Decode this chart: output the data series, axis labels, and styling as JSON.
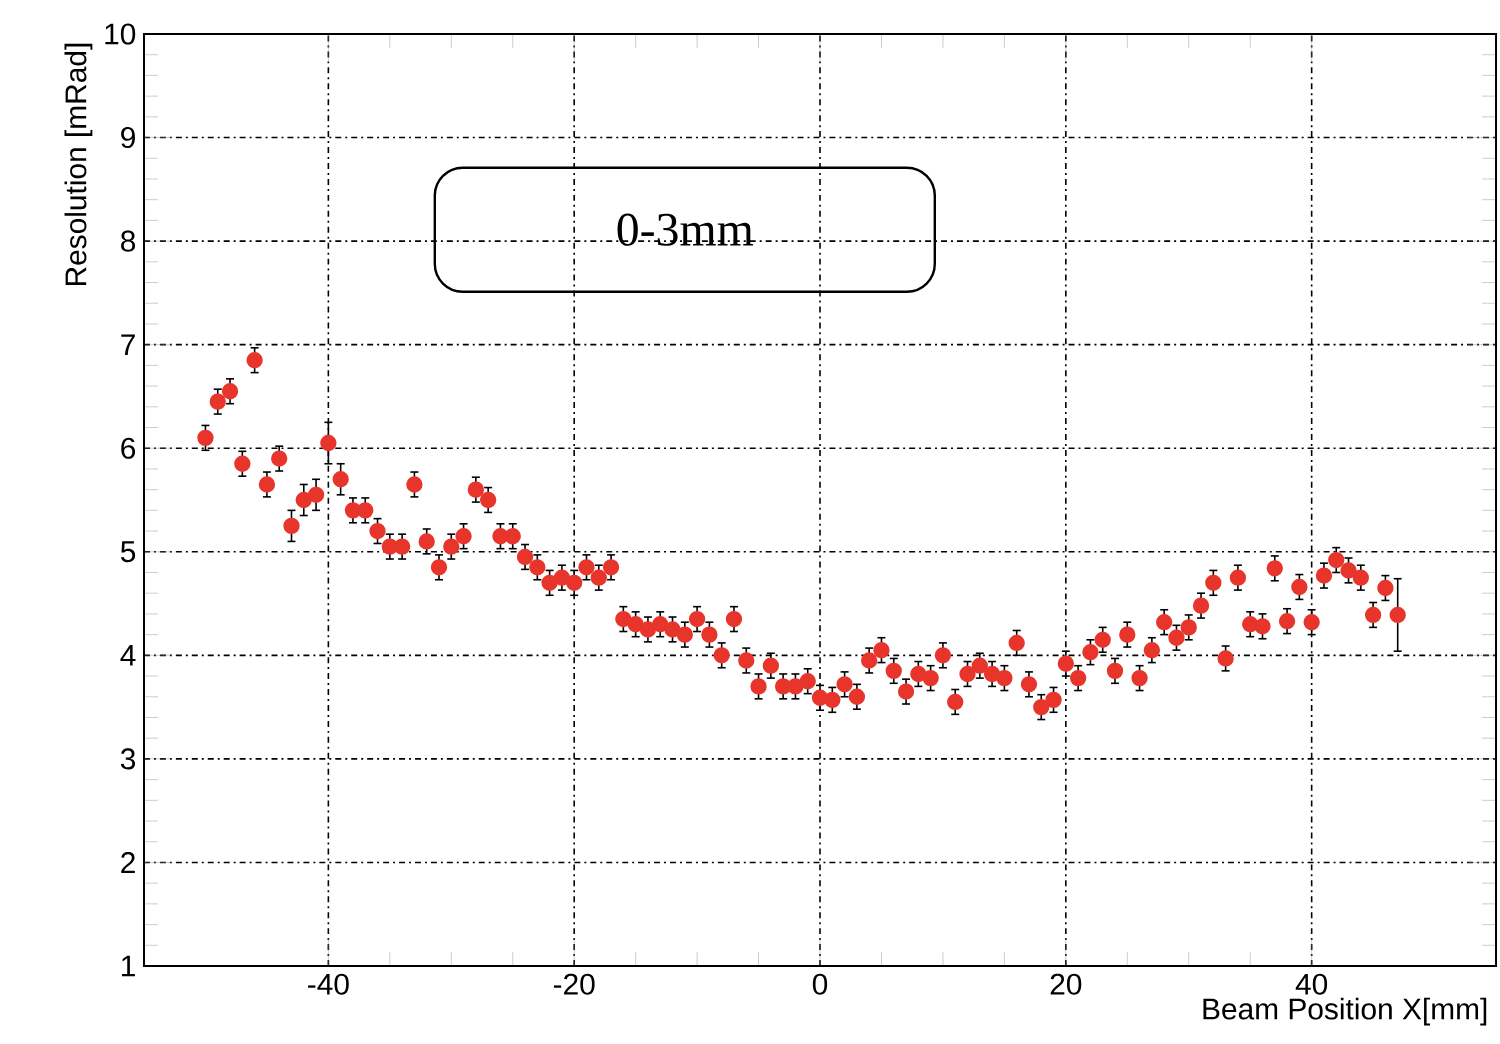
{
  "chart_data": {
    "type": "scatter",
    "xlabel": "Beam Position X[mm]",
    "ylabel": "Resolution [mRad]",
    "annotations": [
      "0-3mm"
    ],
    "xlim": [
      -55,
      55
    ],
    "xticks": [
      -40,
      -20,
      0,
      20,
      40
    ],
    "ylim": [
      1,
      10
    ],
    "yticks": [
      1,
      2,
      3,
      4,
      5,
      6,
      7,
      8,
      9,
      10
    ],
    "grid": true,
    "marker": "circle",
    "series": [
      {
        "color": "#e8352c",
        "x": [
          -50,
          -49,
          -48,
          -47,
          -46,
          -45,
          -44,
          -43,
          -42,
          -41,
          -40,
          -39,
          -38,
          -37,
          -36,
          -35,
          -34,
          -33,
          -32,
          -31,
          -30,
          -29,
          -28,
          -27,
          -26,
          -25,
          -24,
          -23,
          -22,
          -21,
          -20,
          -19,
          -18,
          -17,
          -16,
          -15,
          -14,
          -13,
          -12,
          -11,
          -10,
          -9,
          -8,
          -7,
          -6,
          -5,
          -4,
          -3,
          -2,
          -1,
          0,
          1,
          2,
          3,
          4,
          5,
          6,
          7,
          8,
          9,
          10,
          11,
          12,
          13,
          14,
          15,
          16,
          17,
          18,
          19,
          20,
          21,
          22,
          23,
          24,
          25,
          26,
          27,
          28,
          29,
          30,
          31,
          32,
          33,
          34,
          35,
          36,
          37,
          38,
          39,
          40,
          41,
          42,
          43,
          44,
          45,
          46,
          47
        ],
        "values": [
          6.1,
          6.45,
          6.55,
          5.85,
          6.85,
          5.65,
          5.9,
          5.25,
          5.5,
          5.55,
          6.05,
          5.7,
          5.4,
          5.4,
          5.2,
          5.05,
          5.05,
          5.65,
          5.1,
          4.85,
          5.05,
          5.15,
          5.6,
          5.5,
          5.15,
          5.15,
          4.95,
          4.85,
          4.7,
          4.75,
          4.7,
          4.85,
          4.75,
          4.85,
          4.35,
          4.3,
          4.25,
          4.3,
          4.25,
          4.2,
          4.35,
          4.2,
          4.0,
          4.35,
          3.95,
          3.7,
          3.9,
          3.7,
          3.7,
          3.75,
          3.59,
          3.57,
          3.72,
          3.6,
          3.95,
          4.05,
          3.85,
          3.65,
          3.82,
          3.78,
          4.0,
          3.55,
          3.82,
          3.9,
          3.82,
          3.78,
          4.12,
          3.72,
          3.5,
          3.57,
          3.92,
          3.78,
          4.03,
          4.15,
          3.85,
          4.2,
          3.78,
          4.05,
          4.32,
          4.17,
          4.27,
          4.48,
          4.7,
          3.97,
          4.75,
          4.3,
          4.28,
          4.84,
          4.33,
          4.66,
          4.32,
          4.77,
          4.92,
          4.82,
          4.75,
          4.39,
          4.65,
          4.39
        ],
        "errors": [
          0.12,
          0.12,
          0.12,
          0.12,
          0.12,
          0.12,
          0.12,
          0.15,
          0.15,
          0.15,
          0.2,
          0.15,
          0.12,
          0.12,
          0.12,
          0.12,
          0.12,
          0.12,
          0.12,
          0.12,
          0.12,
          0.12,
          0.12,
          0.12,
          0.12,
          0.12,
          0.12,
          0.12,
          0.12,
          0.12,
          0.12,
          0.12,
          0.12,
          0.12,
          0.12,
          0.12,
          0.12,
          0.12,
          0.12,
          0.12,
          0.12,
          0.12,
          0.12,
          0.12,
          0.12,
          0.12,
          0.12,
          0.12,
          0.12,
          0.12,
          0.12,
          0.12,
          0.12,
          0.12,
          0.12,
          0.12,
          0.12,
          0.12,
          0.12,
          0.12,
          0.12,
          0.12,
          0.12,
          0.12,
          0.12,
          0.12,
          0.12,
          0.12,
          0.12,
          0.12,
          0.12,
          0.12,
          0.12,
          0.12,
          0.12,
          0.12,
          0.12,
          0.12,
          0.12,
          0.12,
          0.12,
          0.12,
          0.12,
          0.12,
          0.12,
          0.12,
          0.12,
          0.12,
          0.12,
          0.12,
          0.12,
          0.12,
          0.12,
          0.12,
          0.12,
          0.12,
          0.12,
          0.35
        ]
      }
    ]
  }
}
